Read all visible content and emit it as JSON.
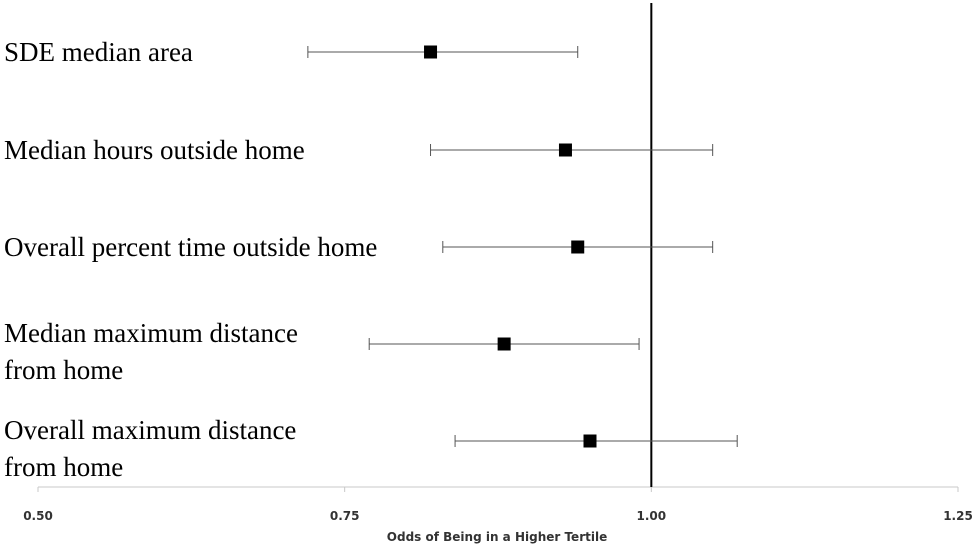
{
  "chart_data": {
    "type": "forest",
    "title": "",
    "xlabel": "Odds of Being in a Higher Tertile",
    "ylabel": "",
    "xlim": [
      0.5,
      1.25
    ],
    "x_ticks": [
      "0.50",
      "0.75",
      "1.00",
      "1.25"
    ],
    "reference_line": 1.0,
    "grid": false,
    "legend": "none",
    "marker": "square",
    "points": [
      {
        "label_lines": [
          "SDE median area"
        ],
        "estimate": 0.82,
        "lower": 0.72,
        "upper": 0.94
      },
      {
        "label_lines": [
          "Median hours outside home"
        ],
        "estimate": 0.93,
        "lower": 0.82,
        "upper": 1.05
      },
      {
        "label_lines": [
          "Overall percent time outside home"
        ],
        "estimate": 0.94,
        "lower": 0.83,
        "upper": 1.05
      },
      {
        "label_lines": [
          "Median maximum distance",
          "from home"
        ],
        "estimate": 0.88,
        "lower": 0.77,
        "upper": 0.99
      },
      {
        "label_lines": [
          "Overall maximum distance",
          "from home"
        ],
        "estimate": 0.95,
        "lower": 0.84,
        "upper": 1.07
      }
    ]
  }
}
